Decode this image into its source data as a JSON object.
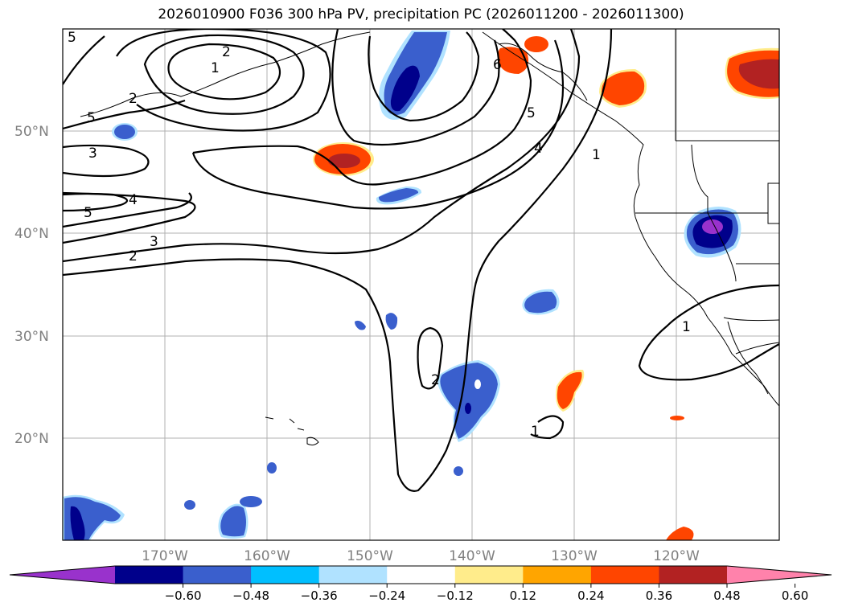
{
  "title": "2026010900 F036 300 hPa PV, precipitation PC (2026011200 - 2026011300)",
  "lat_labels": [
    "50°N",
    "40°N",
    "30°N",
    "20°N"
  ],
  "lon_labels": [
    "170°W",
    "160°W",
    "150°W",
    "140°W",
    "130°W",
    "120°W"
  ],
  "colorbar": {
    "colors": [
      "#9932cc",
      "#00008b",
      "#3a5fcd",
      "#00bfff",
      "#b0e2ff",
      "#ffffff",
      "#ffec8b",
      "#ffa500",
      "#ff4500",
      "#b22222",
      "#ff82ab"
    ],
    "tick_labels": [
      "−0.60",
      "−0.48",
      "−0.36",
      "−0.24",
      "−0.12",
      "0.12",
      "0.24",
      "0.36",
      "0.48",
      "0.60"
    ],
    "levels": [
      -0.6,
      -0.48,
      -0.36,
      -0.24,
      -0.12,
      0.12,
      0.24,
      0.36,
      0.48,
      0.6
    ]
  },
  "contour_labels": [
    "5",
    "2",
    "1",
    "2",
    "5",
    "3",
    "4",
    "5",
    "3",
    "2",
    "6",
    "5",
    "4",
    "1",
    "1",
    "2",
    "1"
  ]
}
